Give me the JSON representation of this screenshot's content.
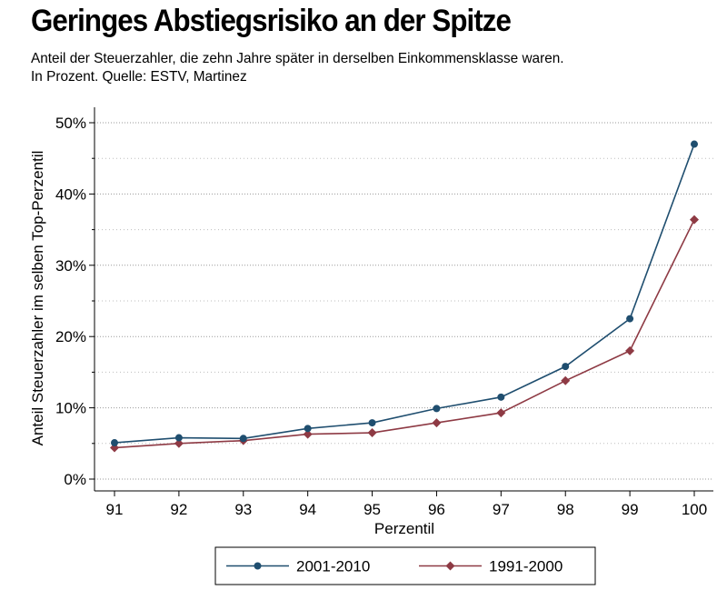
{
  "header": {
    "title": "Geringes Abstiegsrisiko an der Spitze",
    "subtitle_line1": "Anteil der Steuerzahler, die zehn Jahre später in derselben Einkommensklasse waren.",
    "subtitle_line2": "In Prozent. Quelle: ESTV, Martinez"
  },
  "chart_data": {
    "type": "line",
    "title": "Geringes Abstiegsrisiko an der Spitze",
    "xlabel": "Perzentil",
    "ylabel": "Anteil Steuerzahler im selben Top-Perzentil",
    "x": [
      91,
      92,
      93,
      94,
      95,
      96,
      97,
      98,
      99,
      100
    ],
    "x_tick_labels": [
      "91",
      "92",
      "93",
      "94",
      "95",
      "96",
      "97",
      "98",
      "99",
      "100"
    ],
    "y_ticks": [
      0,
      10,
      20,
      30,
      40,
      50
    ],
    "y_tick_labels": [
      "0%",
      "10%",
      "20%",
      "30%",
      "40%",
      "50%"
    ],
    "ylim": [
      0,
      50
    ],
    "grid": true,
    "legend_position": "bottom",
    "series": [
      {
        "name": "2001-2010",
        "color": "#1f4e6f",
        "marker": "circle",
        "values": [
          5.1,
          5.8,
          5.7,
          7.1,
          7.9,
          9.9,
          11.5,
          15.8,
          22.5,
          47.0
        ]
      },
      {
        "name": "1991-2000",
        "color": "#8e3a44",
        "marker": "diamond",
        "values": [
          4.4,
          5.0,
          5.4,
          6.3,
          6.5,
          7.9,
          9.3,
          13.8,
          18.0,
          36.4
        ]
      }
    ]
  }
}
